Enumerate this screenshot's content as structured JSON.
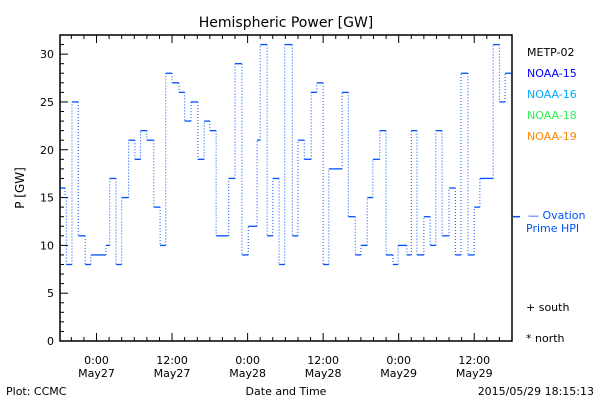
{
  "chart_data": {
    "type": "line",
    "style": "step",
    "title": "Hemispheric Power [GW]",
    "xlabel": "Date and Time",
    "ylabel": "P [GW]",
    "ylim": [
      0,
      32
    ],
    "yticks": [
      0,
      5,
      10,
      15,
      20,
      25,
      30
    ],
    "x_units": "hours since 2015-05-27 00:00 UT",
    "xlim": [
      -5.8,
      66.0
    ],
    "xticks": [
      {
        "h": 0,
        "time": "0:00",
        "date": "May27"
      },
      {
        "h": 12,
        "time": "12:00",
        "date": "May27"
      },
      {
        "h": 24,
        "time": "0:00",
        "date": "May28"
      },
      {
        "h": 36,
        "time": "12:00",
        "date": "May28"
      },
      {
        "h": 48,
        "time": "0:00",
        "date": "May29"
      },
      {
        "h": 60,
        "time": "12:00",
        "date": "May29"
      }
    ],
    "series": [
      {
        "name": "Ovation Prime HPI",
        "color": "#0050ff",
        "steps": [
          [
            -5.7,
            16
          ],
          [
            -5.0,
            15
          ],
          [
            -4.8,
            8
          ],
          [
            -3.9,
            25
          ],
          [
            -2.9,
            11
          ],
          [
            -1.8,
            8
          ],
          [
            -0.9,
            9
          ],
          [
            1.5,
            10
          ],
          [
            2.1,
            17
          ],
          [
            3.1,
            8
          ],
          [
            4.0,
            15
          ],
          [
            5.1,
            21
          ],
          [
            6.1,
            19
          ],
          [
            7.0,
            22
          ],
          [
            8.0,
            21
          ],
          [
            9.1,
            14
          ],
          [
            10.1,
            10
          ],
          [
            11.0,
            28
          ],
          [
            12.0,
            27
          ],
          [
            13.1,
            26
          ],
          [
            14.0,
            23
          ],
          [
            15.0,
            25
          ],
          [
            16.1,
            19
          ],
          [
            17.1,
            23
          ],
          [
            18.0,
            22
          ],
          [
            19.0,
            11
          ],
          [
            21.0,
            17
          ],
          [
            22.0,
            29
          ],
          [
            23.1,
            9
          ],
          [
            24.1,
            12
          ],
          [
            25.5,
            21
          ],
          [
            26.0,
            31
          ],
          [
            27.1,
            11
          ],
          [
            28.0,
            17
          ],
          [
            29.0,
            8
          ],
          [
            29.9,
            31
          ],
          [
            31.1,
            11
          ],
          [
            32.0,
            21
          ],
          [
            33.0,
            19
          ],
          [
            34.1,
            26
          ],
          [
            35.0,
            27
          ],
          [
            36.0,
            8
          ],
          [
            36.9,
            18
          ],
          [
            39.0,
            26
          ],
          [
            40.0,
            13
          ],
          [
            41.1,
            9
          ],
          [
            42.0,
            10
          ],
          [
            43.0,
            15
          ],
          [
            43.9,
            19
          ],
          [
            45.0,
            22
          ],
          [
            46.0,
            9
          ],
          [
            47.1,
            8
          ],
          [
            47.9,
            10
          ],
          [
            49.3,
            9
          ],
          [
            50.0,
            22
          ],
          [
            50.9,
            9
          ],
          [
            52.0,
            13
          ],
          [
            53.0,
            10
          ],
          [
            53.9,
            22
          ],
          [
            54.9,
            11
          ],
          [
            56.0,
            16
          ],
          [
            57.0,
            9
          ],
          [
            57.9,
            28
          ],
          [
            59.0,
            9
          ],
          [
            60.0,
            14
          ],
          [
            60.9,
            17
          ],
          [
            63.0,
            31
          ],
          [
            64.0,
            25
          ],
          [
            64.9,
            28
          ]
        ],
        "end_h": 65.9,
        "current_value": 13
      }
    ],
    "legend": {
      "placement": "right",
      "satellites": [
        {
          "label": "METP-02",
          "color": "#000000"
        },
        {
          "label": "NOAA-15",
          "color": "#0000ff"
        },
        {
          "label": "NOAA-16",
          "color": "#00aaff"
        },
        {
          "label": "NOAA-18",
          "color": "#33ee55"
        },
        {
          "label": "NOAA-19",
          "color": "#ff8800"
        }
      ],
      "ovation_line1": "— Ovation",
      "ovation_line2": "Prime HPI",
      "south": "+ south",
      "north": "* north"
    },
    "footer_left": "Plot: CCMC",
    "footer_right": "2015/05/29 18:15:13"
  }
}
